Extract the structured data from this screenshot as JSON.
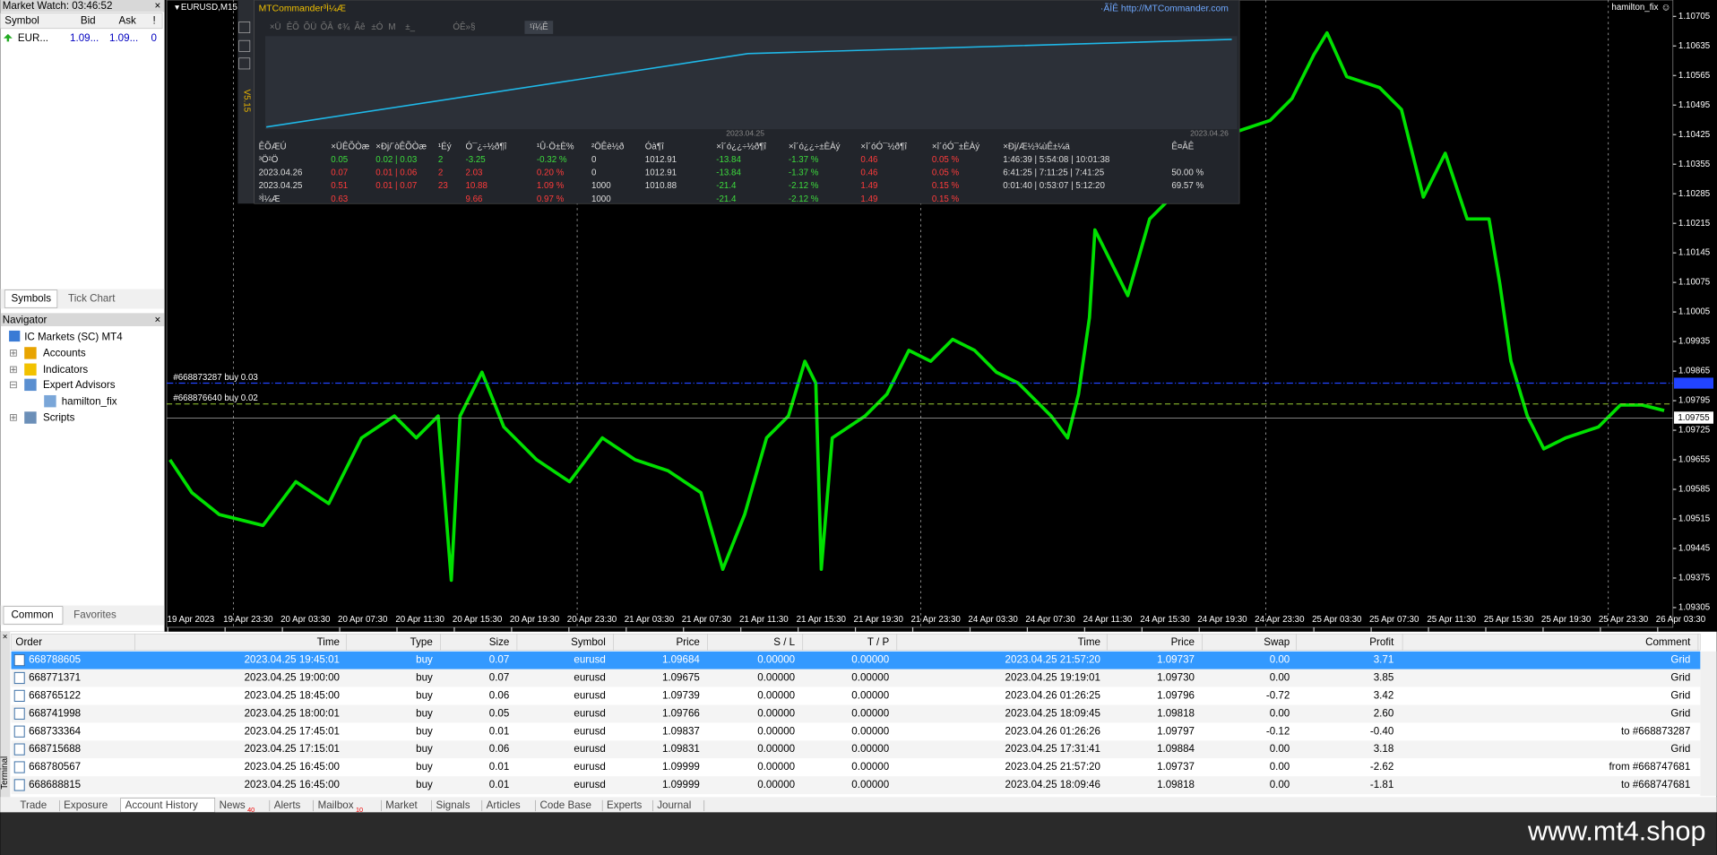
{
  "market_watch": {
    "title": "Market Watch: 03:46:52",
    "headers": [
      "Symbol",
      "Bid",
      "Ask",
      "!"
    ],
    "row": [
      "EUR...",
      "1.09...",
      "1.09...",
      "0"
    ],
    "tabs": [
      "Symbols",
      "Tick Chart"
    ]
  },
  "navigator": {
    "title": "Navigator",
    "items": [
      "IC Markets (SC) MT4",
      "Accounts",
      "Indicators",
      "Expert Advisors",
      "hamilton_fix",
      "Scripts"
    ],
    "tabs": [
      "Common",
      "Favorites"
    ]
  },
  "chart": {
    "symbol": "EURUSD,M15",
    "expert": "hamilton_fix",
    "price_labels": [
      "1.10705",
      "1.10635",
      "1.10565",
      "1.10495",
      "1.10425",
      "1.10355",
      "1.10285",
      "1.10215",
      "1.10145",
      "1.10075",
      "1.10005",
      "1.09935",
      "1.09865",
      "1.09795",
      "1.09725",
      "1.09655",
      "1.09585",
      "1.09515",
      "1.09445",
      "1.09375",
      "1.09305"
    ],
    "current_price": "1.09755",
    "time_labels": [
      "19 Apr 2023",
      "19 Apr 23:30",
      "20 Apr 03:30",
      "20 Apr 07:30",
      "20 Apr 11:30",
      "20 Apr 15:30",
      "20 Apr 19:30",
      "20 Apr 23:30",
      "21 Apr 03:30",
      "21 Apr 07:30",
      "21 Apr 11:30",
      "21 Apr 15:30",
      "21 Apr 19:30",
      "21 Apr 23:30",
      "24 Apr 03:30",
      "24 Apr 07:30",
      "24 Apr 11:30",
      "24 Apr 15:30",
      "24 Apr 19:30",
      "24 Apr 23:30",
      "25 Apr 03:30",
      "25 Apr 07:30",
      "25 Apr 11:30",
      "25 Apr 15:30",
      "25 Apr 19:30",
      "25 Apr 23:30",
      "26 Apr 03:30"
    ],
    "order_lines": [
      "#668873287 buy 0.03",
      "#668876640 buy 0.02"
    ]
  },
  "panel": {
    "title": "MTCommander³Ì¼Æ",
    "link": "·ÃÎÊ http://MTCommander.com",
    "version": "V5.15",
    "toolbar": [
      "×Ü",
      "ÊÕ",
      "ÕÜ",
      "ÕÂ",
      "¢¾",
      "Ãê",
      "±Ó",
      "M",
      "±_",
      "ÓÊ»§"
    ],
    "tab": "¹ï¼Ê",
    "dates": [
      "2023.04.25",
      "2023.04.26"
    ],
    "headers": [
      "ÊÕÆÚ",
      "×ÜÊÕÒæ",
      "×Ðj/´òÊÕÒæ",
      "¹Éý",
      "Ó¯¿÷½ð¶î",
      "¹Û·Ö±È%",
      "²ÖÊè½ð",
      "Óà¶î",
      "×î´ó¿¿÷½ð¶î",
      "×î´ó¿¿÷±ÈÀý",
      "×î´óÓ¯½ð¶î",
      "×î´óÓ¯±ÈÀý",
      "×Ðj/Æ½¾ùÊ±¼ä",
      "Ê¤ÂÊ"
    ],
    "rows": [
      [
        "³Ö²Ö",
        "0.05",
        "0.02 | 0.03",
        "2",
        "-3.25",
        "-0.32 %",
        "0",
        "1012.91",
        "-13.84",
        "-1.37 %",
        "0.46",
        "0.05 %",
        "1:46:39 | 5:54:08 | 10:01:38",
        null
      ],
      [
        "2023.04.26",
        "0.07",
        "0.01 | 0.06",
        "2",
        "2.03",
        "0.20 %",
        "0",
        "1012.91",
        "-13.84",
        "-1.37 %",
        "0.46",
        "0.05 %",
        "6:41:25 | 7:11:25 | 7:41:25",
        "50.00 %"
      ],
      [
        "2023.04.25",
        "0.51",
        "0.01 | 0.07",
        "23",
        "10.88",
        "1.09 %",
        "1000",
        "1010.88",
        "-21.4",
        "-2.12 %",
        "1.49",
        "0.15 %",
        "0:01:40 | 0:53:07 | 5:12:20",
        "69.57 %"
      ],
      [
        "³Ì¼Æ",
        "0.63",
        null,
        null,
        "9.66",
        "0.97 %",
        "1000",
        null,
        "-21.4",
        "-2.12 %",
        "1.49",
        "0.15 %",
        null,
        null
      ]
    ]
  },
  "terminal": {
    "label": "Terminal",
    "headers": [
      "Order",
      "Time",
      "Type",
      "Size",
      "Symbol",
      "Price",
      "S / L",
      "T / P",
      "Time",
      "Price",
      "Swap",
      "Profit",
      "Comment"
    ],
    "rows": [
      [
        "668788605",
        "2023.04.25 19:45:01",
        "buy",
        "0.07",
        "eurusd",
        "1.09684",
        "0.00000",
        "0.00000",
        "2023.04.25 21:57:20",
        "1.09737",
        "0.00",
        "3.71",
        "Grid"
      ],
      [
        "668771371",
        "2023.04.25 19:00:00",
        "buy",
        "0.07",
        "eurusd",
        "1.09675",
        "0.00000",
        "0.00000",
        "2023.04.25 19:19:01",
        "1.09730",
        "0.00",
        "3.85",
        "Grid"
      ],
      [
        "668765122",
        "2023.04.25 18:45:00",
        "buy",
        "0.06",
        "eurusd",
        "1.09739",
        "0.00000",
        "0.00000",
        "2023.04.26 01:26:25",
        "1.09796",
        "-0.72",
        "3.42",
        "Grid"
      ],
      [
        "668741998",
        "2023.04.25 18:00:01",
        "buy",
        "0.05",
        "eurusd",
        "1.09766",
        "0.00000",
        "0.00000",
        "2023.04.25 18:09:45",
        "1.09818",
        "0.00",
        "2.60",
        "Grid"
      ],
      [
        "668733364",
        "2023.04.25 17:45:01",
        "buy",
        "0.01",
        "eurusd",
        "1.09837",
        "0.00000",
        "0.00000",
        "2023.04.26 01:26:26",
        "1.09797",
        "-0.12",
        "-0.40",
        "to #668873287"
      ],
      [
        "668715688",
        "2023.04.25 17:15:01",
        "buy",
        "0.06",
        "eurusd",
        "1.09831",
        "0.00000",
        "0.00000",
        "2023.04.25 17:31:41",
        "1.09884",
        "0.00",
        "3.18",
        "Grid"
      ],
      [
        "668780567",
        "2023.04.25 16:45:00",
        "buy",
        "0.01",
        "eurusd",
        "1.09999",
        "0.00000",
        "0.00000",
        "2023.04.25 21:57:20",
        "1.09737",
        "0.00",
        "-2.62",
        "from #668747681"
      ],
      [
        "668688815",
        "2023.04.25 16:45:00",
        "buy",
        "0.01",
        "eurusd",
        "1.09999",
        "0.00000",
        "0.00000",
        "2023.04.25 18:09:46",
        "1.09818",
        "0.00",
        "-1.81",
        "to #668747681"
      ]
    ],
    "tabs": [
      {
        "label": "Trade"
      },
      {
        "label": "Exposure"
      },
      {
        "label": "Account History"
      },
      {
        "label": "News",
        "badge": "40"
      },
      {
        "label": "Alerts"
      },
      {
        "label": "Mailbox",
        "badge": "10"
      },
      {
        "label": "Market"
      },
      {
        "label": "Signals"
      },
      {
        "label": "Articles"
      },
      {
        "label": "Code Base"
      },
      {
        "label": "Experts"
      },
      {
        "label": "Journal"
      }
    ]
  },
  "watermark": "www.mt4.shop"
}
